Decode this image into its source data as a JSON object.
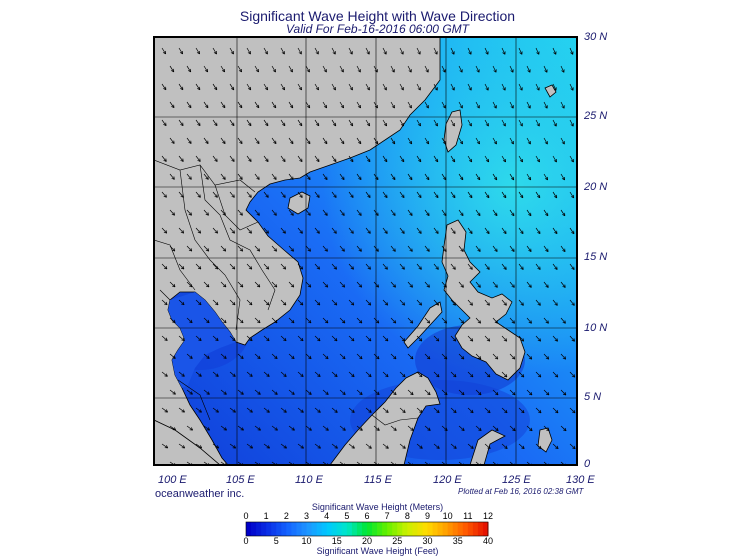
{
  "title": "Significant Wave Height with Wave Direction",
  "subtitle": "Valid For Feb-16-2016 06:00 GMT",
  "credit": "oceanweather inc.",
  "plotted": "Plotted at Feb 16, 2016 02:38 GMT",
  "lat_labels": [
    "30 N",
    "25 N",
    "20 N",
    "15 N",
    "10 N",
    "5 N",
    "0"
  ],
  "lon_labels": [
    "100 E",
    "105 E",
    "110 E",
    "115 E",
    "120 E",
    "125 E",
    "130 E"
  ],
  "colorbar": {
    "title_top": "Significant Wave Height (Meters)",
    "title_bottom": "Significant Wave Height (Feet)",
    "meters_ticks": [
      "0",
      "1",
      "2",
      "3",
      "4",
      "5",
      "6",
      "7",
      "8",
      "9",
      "10",
      "11",
      "12"
    ],
    "feet_ticks": [
      "0",
      "5",
      "10",
      "15",
      "20",
      "25",
      "30",
      "35",
      "40"
    ],
    "colors": [
      "#0000c8",
      "#0a30e6",
      "#1464ff",
      "#1e96ff",
      "#00c8ff",
      "#00e6c8",
      "#00e632",
      "#64f000",
      "#c8f000",
      "#ffdc00",
      "#ffa000",
      "#ff5a00",
      "#e61400"
    ]
  },
  "colors": {
    "land": "#c0c0c0",
    "sea_low": "#1446e6",
    "sea_mid": "#1e78ff",
    "sea_high": "#22c8f0",
    "border": "#000000",
    "text": "#1a1a6e"
  }
}
